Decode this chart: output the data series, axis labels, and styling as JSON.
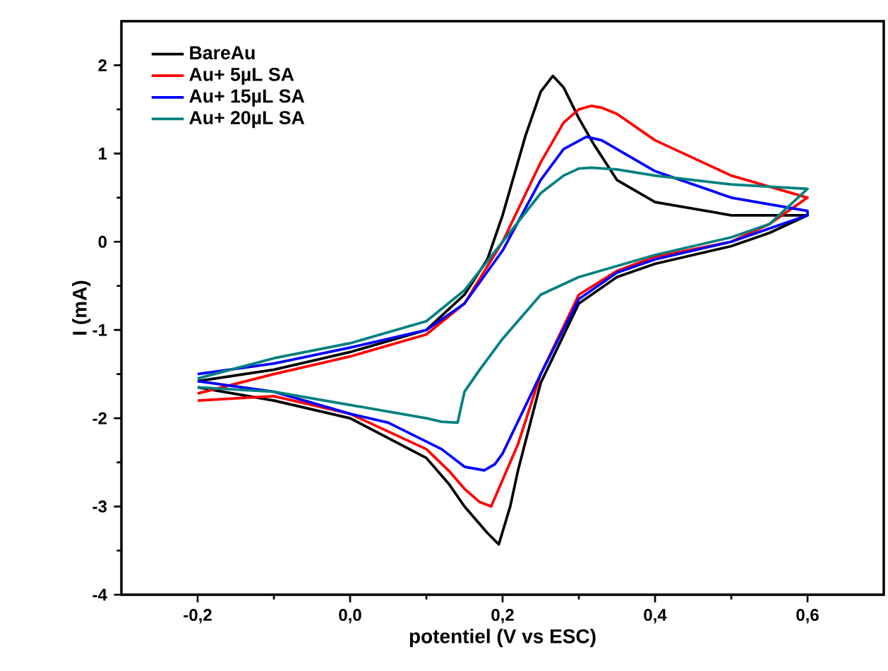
{
  "chart_data": {
    "type": "line",
    "xlabel": "potentiel (V vs ESC)",
    "ylabel": "I (mA)",
    "xlim": [
      -0.3,
      0.7
    ],
    "ylim": [
      -4,
      2.5
    ],
    "xticks": [
      {
        "value": -0.2,
        "label": "-0,2"
      },
      {
        "value": 0.0,
        "label": "0,0"
      },
      {
        "value": 0.2,
        "label": "0,2"
      },
      {
        "value": 0.4,
        "label": "0,4"
      },
      {
        "value": 0.6,
        "label": "0,6"
      }
    ],
    "yticks": [
      -4,
      -3,
      -2,
      -1,
      0,
      1,
      2
    ],
    "legend": "top left",
    "series": [
      {
        "name": "BareAu",
        "color": "#000000",
        "x": [
          -0.2,
          -0.1,
          0.0,
          0.1,
          0.15,
          0.18,
          0.2,
          0.23,
          0.25,
          0.266,
          0.28,
          0.3,
          0.32,
          0.35,
          0.4,
          0.5,
          0.6,
          0.6,
          0.55,
          0.5,
          0.4,
          0.35,
          0.3,
          0.25,
          0.22,
          0.21,
          0.195,
          0.18,
          0.17,
          0.15,
          0.13,
          0.1,
          0.0,
          -0.1,
          -0.2
        ],
        "values": [
          -1.58,
          -1.45,
          -1.25,
          -1.0,
          -0.6,
          -0.2,
          0.3,
          1.2,
          1.7,
          1.88,
          1.75,
          1.4,
          1.1,
          0.7,
          0.45,
          0.3,
          0.3,
          0.3,
          0.1,
          -0.05,
          -0.25,
          -0.4,
          -0.7,
          -1.6,
          -2.6,
          -3.0,
          -3.43,
          -3.3,
          -3.2,
          -3.0,
          -2.75,
          -2.45,
          -2.0,
          -1.8,
          -1.65
        ]
      },
      {
        "name": "Au+ 5µL SA",
        "color": "#ff0000",
        "x": [
          -0.2,
          -0.1,
          0.0,
          0.1,
          0.15,
          0.2,
          0.25,
          0.28,
          0.3,
          0.316,
          0.33,
          0.35,
          0.4,
          0.5,
          0.6,
          0.6,
          0.55,
          0.5,
          0.4,
          0.35,
          0.3,
          0.25,
          0.22,
          0.2,
          0.185,
          0.17,
          0.15,
          0.13,
          0.1,
          0.0,
          -0.1,
          -0.2
        ],
        "values": [
          -1.72,
          -1.5,
          -1.3,
          -1.05,
          -0.7,
          0.0,
          0.9,
          1.35,
          1.5,
          1.54,
          1.52,
          1.45,
          1.15,
          0.75,
          0.5,
          0.5,
          0.2,
          0.0,
          -0.17,
          -0.33,
          -0.6,
          -1.5,
          -2.3,
          -2.7,
          -3.0,
          -2.95,
          -2.8,
          -2.6,
          -2.35,
          -1.95,
          -1.75,
          -1.8
        ]
      },
      {
        "name": "Au+ 15µL SA",
        "color": "#0000ff",
        "x": [
          -0.2,
          -0.1,
          0.0,
          0.1,
          0.15,
          0.2,
          0.25,
          0.28,
          0.31,
          0.33,
          0.35,
          0.4,
          0.5,
          0.6,
          0.6,
          0.55,
          0.5,
          0.4,
          0.35,
          0.3,
          0.25,
          0.2,
          0.19,
          0.176,
          0.15,
          0.12,
          0.05,
          0.0,
          -0.1,
          -0.2
        ],
        "values": [
          -1.5,
          -1.38,
          -1.2,
          -1.0,
          -0.7,
          -0.1,
          0.7,
          1.05,
          1.19,
          1.15,
          1.05,
          0.8,
          0.5,
          0.35,
          0.3,
          0.15,
          0.0,
          -0.2,
          -0.35,
          -0.65,
          -1.5,
          -2.4,
          -2.52,
          -2.59,
          -2.55,
          -2.35,
          -2.05,
          -1.95,
          -1.7,
          -1.58
        ]
      },
      {
        "name": "Au+ 20µL SA",
        "color": "#008080",
        "x": [
          -0.2,
          -0.1,
          0.0,
          0.1,
          0.15,
          0.2,
          0.25,
          0.28,
          0.3,
          0.316,
          0.35,
          0.4,
          0.5,
          0.6,
          0.6,
          0.55,
          0.5,
          0.4,
          0.3,
          0.25,
          0.2,
          0.17,
          0.15,
          0.141,
          0.12,
          0.1,
          0.0,
          -0.1,
          -0.2
        ],
        "values": [
          -1.55,
          -1.32,
          -1.15,
          -0.9,
          -0.55,
          0.0,
          0.55,
          0.75,
          0.83,
          0.84,
          0.82,
          0.75,
          0.65,
          0.6,
          0.6,
          0.2,
          0.05,
          -0.15,
          -0.4,
          -0.6,
          -1.1,
          -1.45,
          -1.7,
          -2.05,
          -2.04,
          -2.0,
          -1.85,
          -1.7,
          -1.65
        ]
      }
    ]
  }
}
